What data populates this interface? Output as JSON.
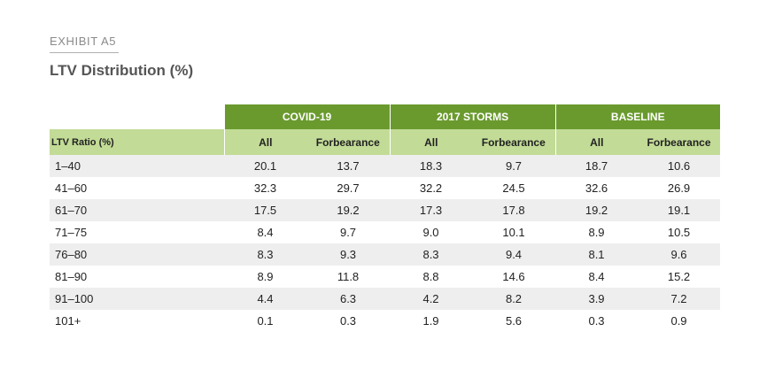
{
  "exhibit": "EXHIBIT A5",
  "title": "LTV Distribution (%)",
  "groups": [
    "COVID-19",
    "2017 STORMS",
    "BASELINE"
  ],
  "row_header": "LTV Ratio (%)",
  "sub_all": "All",
  "sub_forb": "Forbearance",
  "rows": [
    {
      "label": "1–40",
      "v": [
        "20.1",
        "13.7",
        "18.3",
        "9.7",
        "18.7",
        "10.6"
      ]
    },
    {
      "label": "41–60",
      "v": [
        "32.3",
        "29.7",
        "32.2",
        "24.5",
        "32.6",
        "26.9"
      ]
    },
    {
      "label": "61–70",
      "v": [
        "17.5",
        "19.2",
        "17.3",
        "17.8",
        "19.2",
        "19.1"
      ]
    },
    {
      "label": "71–75",
      "v": [
        "8.4",
        "9.7",
        "9.0",
        "10.1",
        "8.9",
        "10.5"
      ]
    },
    {
      "label": "76–80",
      "v": [
        "8.3",
        "9.3",
        "8.3",
        "9.4",
        "8.1",
        "9.6"
      ]
    },
    {
      "label": "81–90",
      "v": [
        "8.9",
        "11.8",
        "8.8",
        "14.6",
        "8.4",
        "15.2"
      ]
    },
    {
      "label": "91–100",
      "v": [
        "4.4",
        "6.3",
        "4.2",
        "8.2",
        "3.9",
        "7.2"
      ]
    },
    {
      "label": "101+",
      "v": [
        "0.1",
        "0.3",
        "1.9",
        "5.6",
        "0.3",
        "0.9"
      ]
    }
  ]
}
